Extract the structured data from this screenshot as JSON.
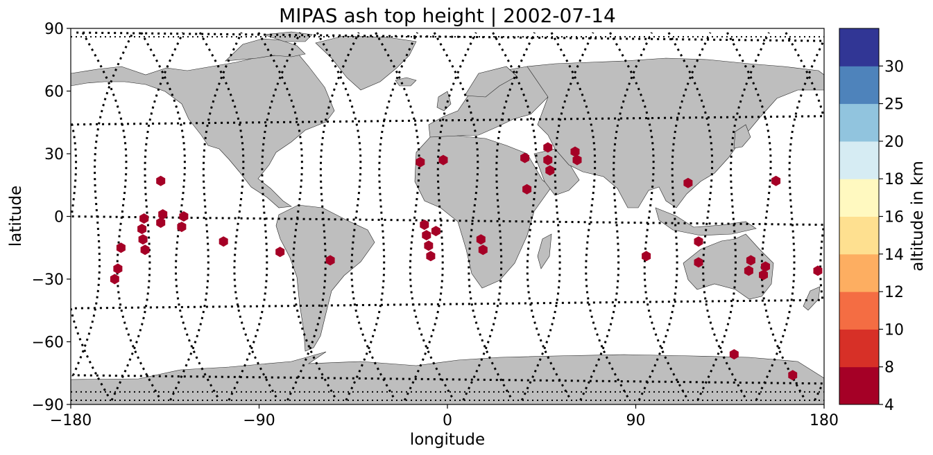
{
  "chart_data": {
    "type": "scatter",
    "title": "MIPAS ash top height | 2002-07-14",
    "xlabel": "longitude",
    "ylabel": "latitude",
    "xlim": [
      -180,
      180
    ],
    "ylim": [
      -90,
      90
    ],
    "xticks": [
      -180,
      -90,
      0,
      90,
      180
    ],
    "yticks": [
      -90,
      -60,
      -30,
      0,
      30,
      60,
      90
    ],
    "xtick_labels": [
      "−180",
      "−90",
      "0",
      "90",
      "180"
    ],
    "ytick_labels": [
      "−90",
      "−60",
      "−30",
      "0",
      "30",
      "60",
      "90"
    ],
    "projection": "plate-carree",
    "grid": false,
    "basemap": "coastlines with grey land",
    "colorbar": {
      "label": "altitude in km",
      "bounds": [
        4,
        8,
        10,
        12,
        14,
        16,
        18,
        20,
        25,
        30
      ],
      "tick_labels": [
        "4",
        "8",
        "10",
        "12",
        "14",
        "16",
        "18",
        "20",
        "25",
        "30"
      ],
      "colors": [
        "#a50026",
        "#d73027",
        "#f46d43",
        "#fdae61",
        "#fee090",
        "#fff9c0",
        "#d6ecf3",
        "#91c4de",
        "#4e83bb",
        "#313695"
      ]
    },
    "series": [
      {
        "marker": "hexagon",
        "color": "#a50026",
        "points": [
          [
            -159,
            -30
          ],
          [
            -157.5,
            -25
          ],
          [
            -156,
            -15
          ],
          [
            -146,
            -6
          ],
          [
            -145,
            -1
          ],
          [
            -145.5,
            -11
          ],
          [
            -144.5,
            -16
          ],
          [
            -137,
            17
          ],
          [
            -136,
            1
          ],
          [
            -137,
            -3
          ],
          [
            -126,
            0
          ],
          [
            -127,
            -5
          ],
          [
            -107,
            -12
          ],
          [
            -80,
            -17
          ],
          [
            -56,
            -21
          ],
          [
            -13,
            26
          ],
          [
            -2,
            27
          ],
          [
            -11,
            -4
          ],
          [
            -10,
            -9
          ],
          [
            -9,
            -14
          ],
          [
            -8,
            -19
          ],
          [
            -5.5,
            -7
          ],
          [
            16,
            -11
          ],
          [
            17,
            -16
          ],
          [
            37,
            28
          ],
          [
            38,
            13
          ],
          [
            48,
            33
          ],
          [
            48,
            27
          ],
          [
            49,
            22
          ],
          [
            61,
            31
          ],
          [
            62,
            27
          ],
          [
            95,
            -19
          ],
          [
            115,
            16
          ],
          [
            120,
            -12
          ],
          [
            120,
            -22
          ],
          [
            137,
            -66
          ],
          [
            144,
            -26
          ],
          [
            145,
            -21
          ],
          [
            151,
            -28
          ],
          [
            152,
            -24
          ],
          [
            157,
            17
          ],
          [
            165,
            -76
          ],
          [
            177,
            -26
          ]
        ]
      }
    ],
    "orbit_tracks": "black dotted satellite orbit tracks"
  }
}
